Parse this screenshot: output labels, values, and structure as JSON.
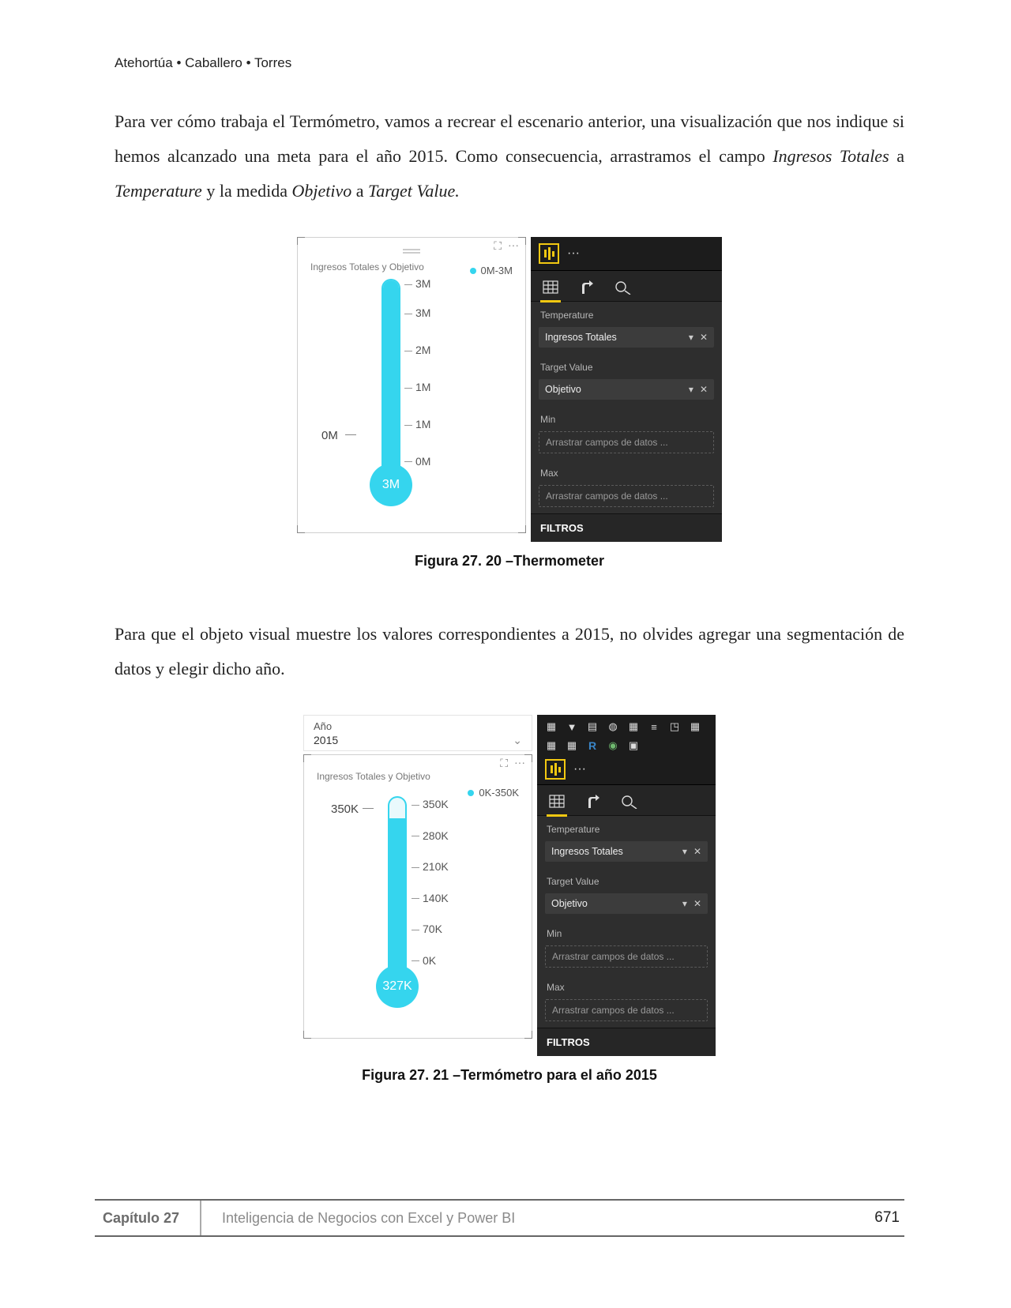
{
  "header": {
    "authors": "Atehortúa • Caballero • Torres"
  },
  "para1": {
    "t1": "Para ver cómo trabaja el Termómetro, vamos a recrear el escenario anterior, una visualización que nos indique si hemos alcanzado una meta para el año 2015. Como consecuencia, arrastramos el campo ",
    "i1": "Ingresos Totales",
    "t2": " a ",
    "i2": "Temperature",
    "t3": " y la medida ",
    "i3": "Objetivo",
    "t4": " a ",
    "i4": "Target Value.",
    "t5": ""
  },
  "fig1": {
    "vis_title": "Ingresos Totales y Objetivo",
    "legend": "0M-3M",
    "zero": "0M",
    "bulb": "3M",
    "ticks": [
      "3M",
      "3M",
      "2M",
      "1M",
      "1M",
      "0M"
    ],
    "tick_positions_pct": [
      0,
      16,
      36,
      56,
      76,
      96
    ],
    "fill_pct": 100,
    "thermo_color": "#35d5ee",
    "tube_bg": "#e9f9fc"
  },
  "fields": {
    "sections": {
      "temperature": "Temperature",
      "target": "Target Value",
      "min": "Min",
      "max": "Max"
    },
    "wells": {
      "temperature": "Ingresos Totales",
      "target": "Objetivo",
      "placeholder": "Arrastrar campos de datos ..."
    },
    "filtros": "FILTROS",
    "drop_arrow": "▾",
    "close_x": "✕"
  },
  "caption1": "Figura 27. 20 –Thermometer",
  "para2": "Para que el objeto visual muestre los valores correspondientes a 2015, no olvides agregar una segmentación de datos y elegir dicho año.",
  "fig2": {
    "slicer_label": "Año",
    "slicer_value": "2015",
    "vis_title": "Ingresos Totales y Objetivo",
    "legend": "0K-350K",
    "zero": "350K",
    "bulb": "327K",
    "ticks": [
      "350K",
      "280K",
      "210K",
      "140K",
      "70K",
      "0K"
    ],
    "tick_positions_pct": [
      0,
      19,
      38,
      57,
      76,
      95
    ],
    "fill_pct": 88
  },
  "caption2": "Figura 27. 21 –Termómetro para el año 2015",
  "footer": {
    "chapter": "Capítulo 27",
    "title": "Inteligencia de Negocios con Excel y Power BI",
    "page": "671"
  },
  "colors": {
    "powerbi_yellow": "#f2c811",
    "pane_dark": "#2e2e2e",
    "text_muted": "#8a8a8a"
  }
}
